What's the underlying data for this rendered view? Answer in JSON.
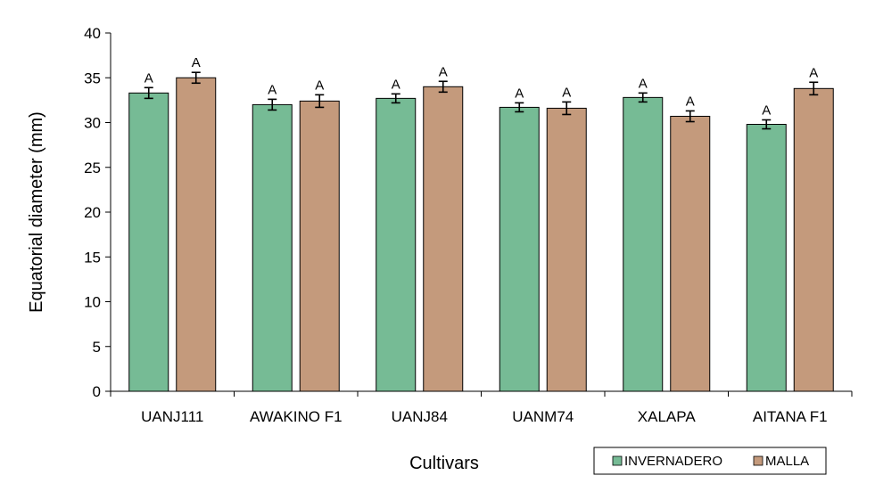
{
  "chart_data": {
    "type": "bar",
    "title": "",
    "xlabel": "Cultivars",
    "ylabel": "Equatorial diameter (mm)",
    "ylim": [
      0,
      40
    ],
    "yticks": [
      0,
      5,
      10,
      15,
      20,
      25,
      30,
      35,
      40
    ],
    "grid": false,
    "legend_position": "bottom-right",
    "categories": [
      "UANJ111",
      "AWAKINO F1",
      "UANJ84",
      "UANM74",
      "XALAPA",
      "AITANA F1"
    ],
    "series": [
      {
        "name": "INVERNADERO",
        "color": "#76bb95",
        "values": [
          33.3,
          32.0,
          32.7,
          31.7,
          32.8,
          29.8
        ],
        "errors": [
          0.6,
          0.6,
          0.5,
          0.5,
          0.5,
          0.5
        ],
        "labels": [
          "A",
          "A",
          "A",
          "A",
          "A",
          "A"
        ]
      },
      {
        "name": "MALLA",
        "color": "#c49a7c",
        "values": [
          35.0,
          32.4,
          34.0,
          31.6,
          30.7,
          33.8
        ],
        "errors": [
          0.6,
          0.7,
          0.6,
          0.7,
          0.6,
          0.7
        ],
        "labels": [
          "A",
          "A",
          "A",
          "A",
          "A",
          "A"
        ]
      }
    ]
  }
}
